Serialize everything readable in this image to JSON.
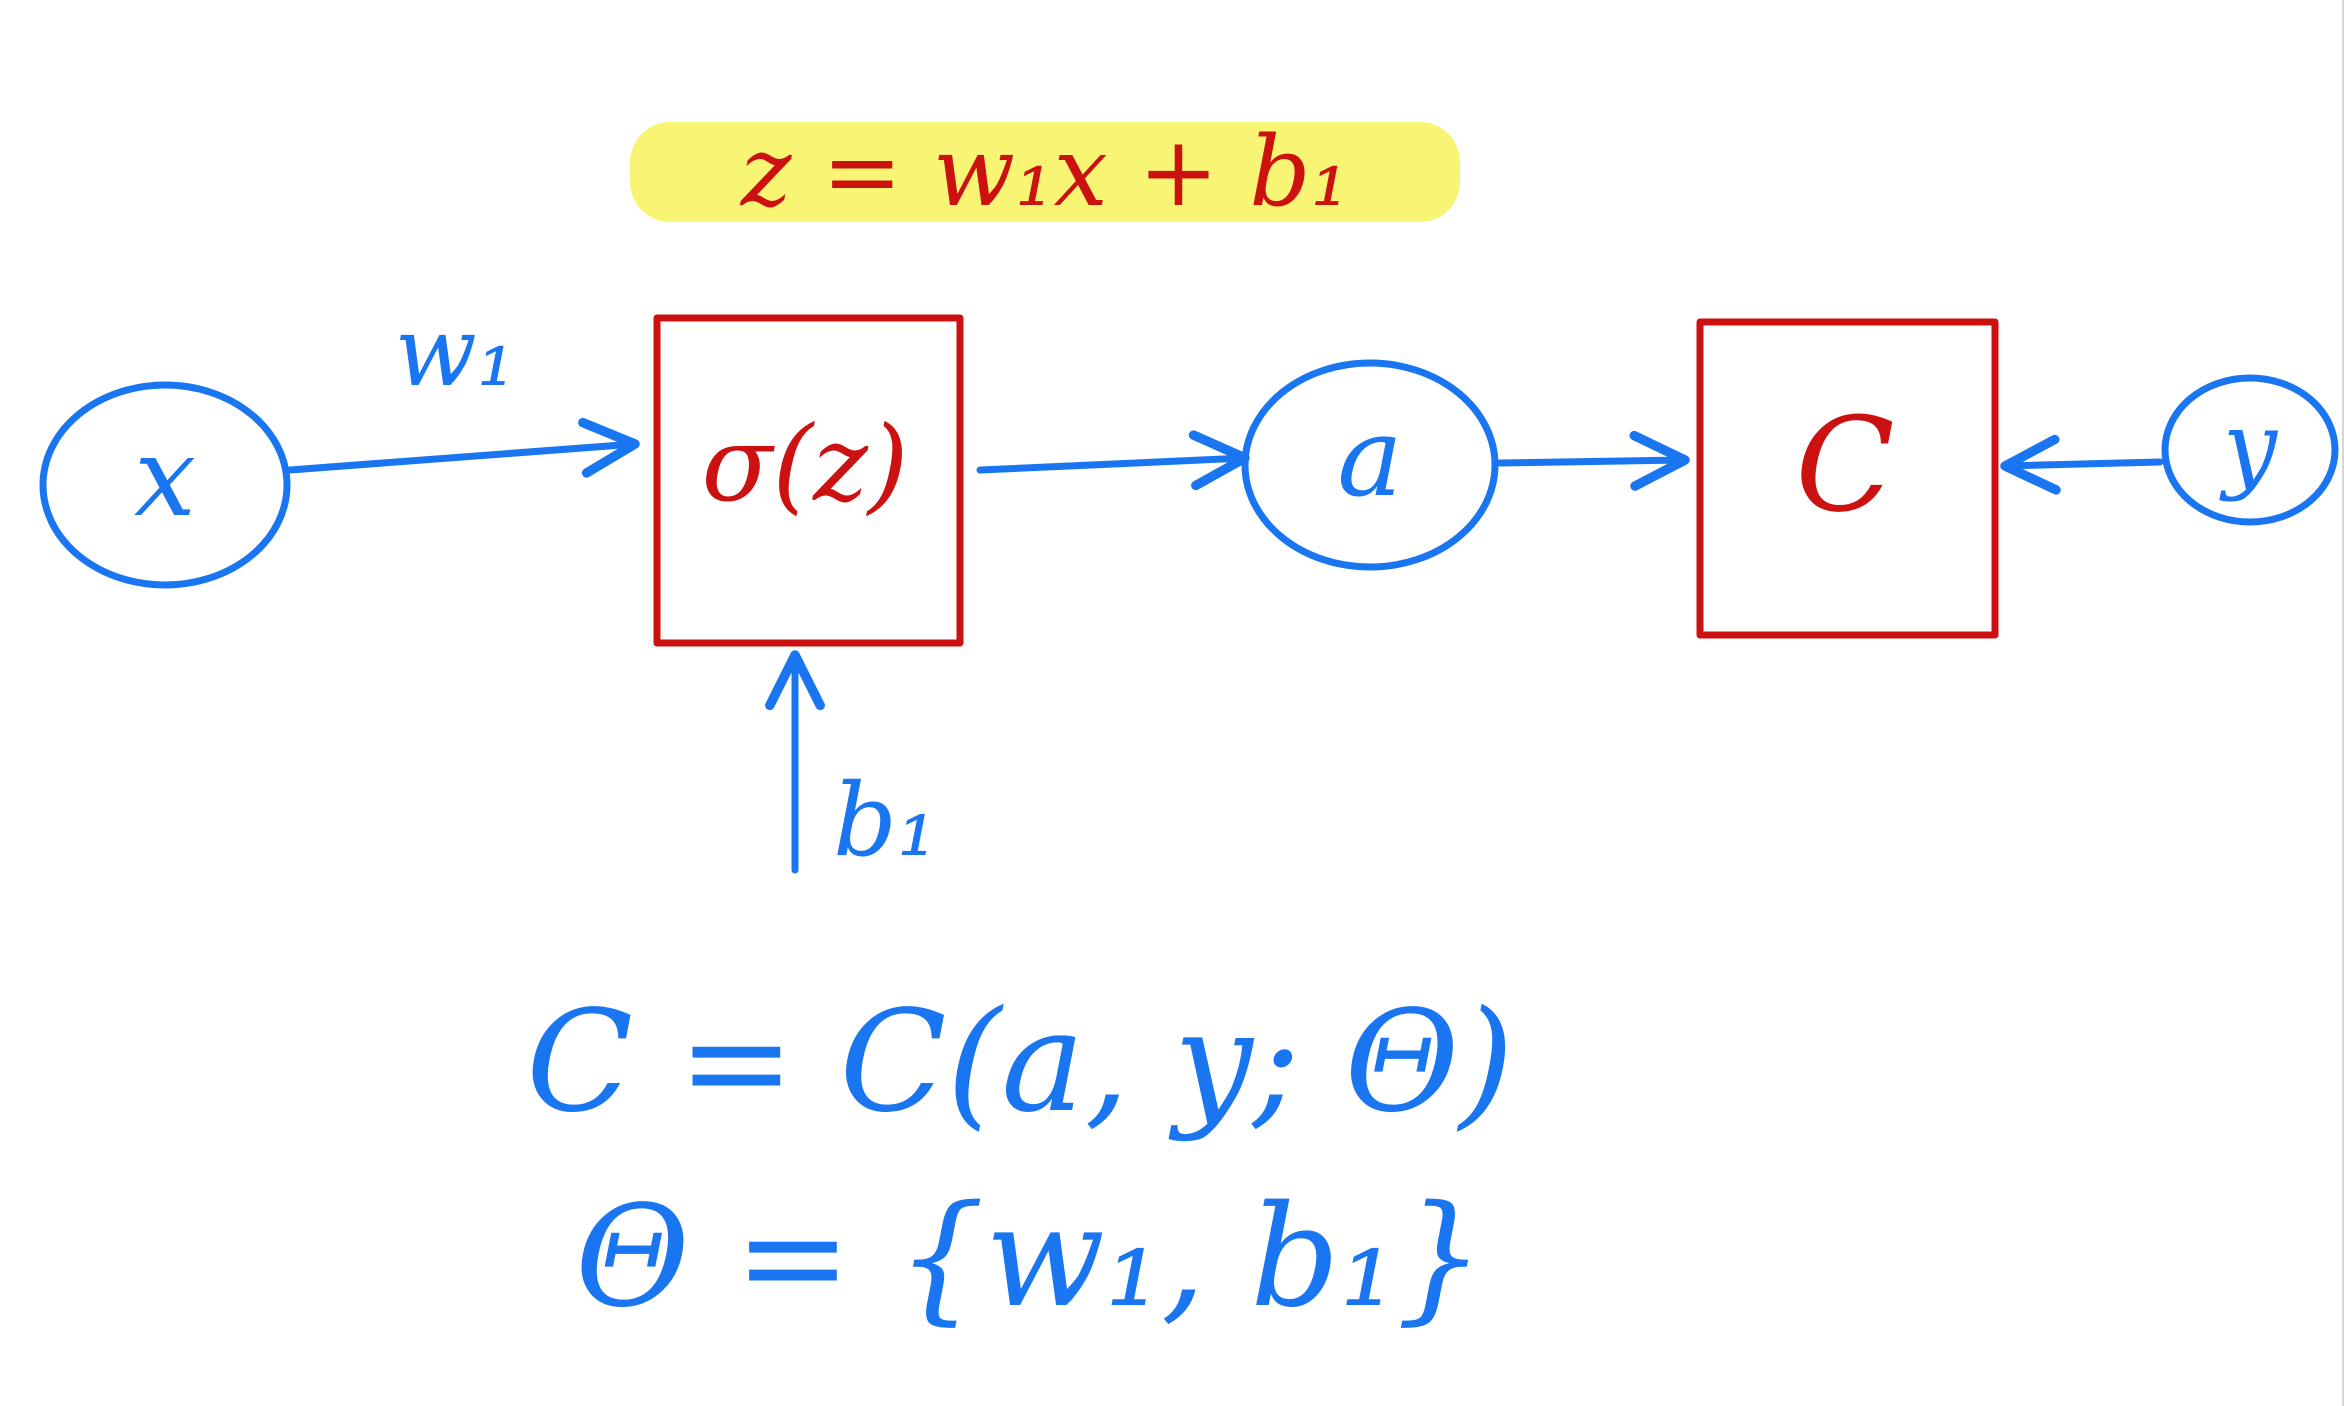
{
  "colors": {
    "ink_blue": "#1a75f0",
    "ink_red": "#cc1111",
    "highlight": "#f6f35a",
    "background": "#ffffff"
  },
  "equation_top": "z = w₁x + b₁",
  "nodes": {
    "input": "x",
    "activation": "σ(z)",
    "output": "a",
    "cost": "C",
    "target": "y"
  },
  "edge_labels": {
    "weight": "w₁",
    "bias": "b₁"
  },
  "equations_bottom": {
    "cost_def": "C = C(a, y; Θ)",
    "theta_def": "Θ = {w₁, b₁}"
  }
}
